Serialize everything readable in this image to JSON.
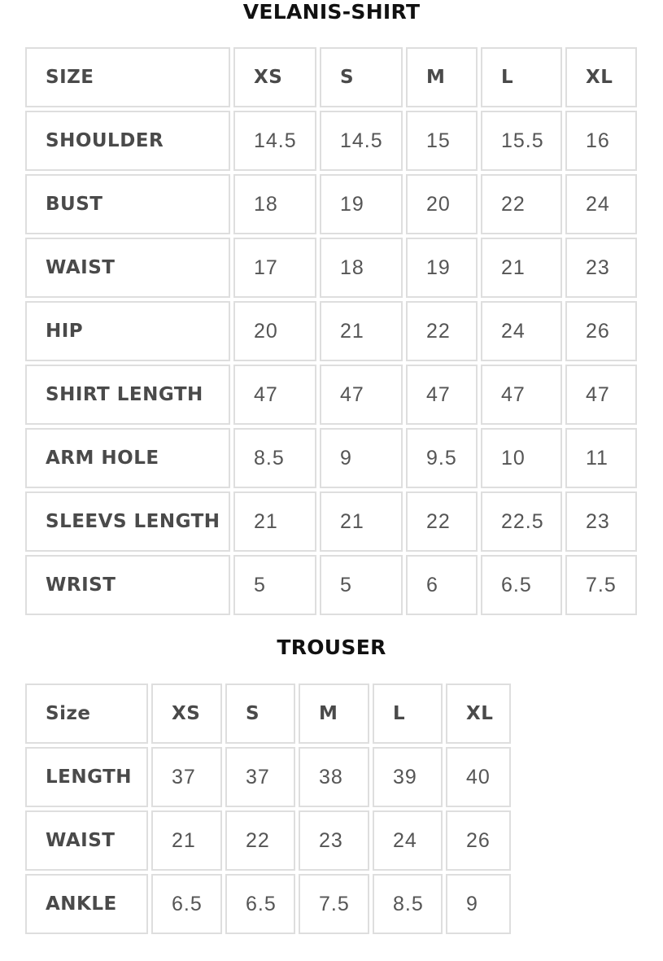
{
  "shirt": {
    "title": "VELANIS-SHIRT",
    "header": [
      "SIZE",
      "XS",
      "S",
      "M",
      "L",
      "XL"
    ],
    "rows": [
      [
        "SHOULDER",
        "14.5",
        "14.5",
        "15",
        "15.5",
        "16"
      ],
      [
        "BUST",
        "18",
        "19",
        "20",
        "22",
        "24"
      ],
      [
        "WAIST",
        "17",
        "18",
        "19",
        "21",
        "23"
      ],
      [
        "HIP",
        "20",
        "21",
        "22",
        "24",
        "26"
      ],
      [
        "SHIRT LENGTH",
        "47",
        "47",
        "47",
        "47",
        "47"
      ],
      [
        "ARM HOLE",
        "8.5",
        "9",
        "9.5",
        "10",
        "11"
      ],
      [
        "SLEEVS LENGTH",
        "21",
        "21",
        "22",
        "22.5",
        "23"
      ],
      [
        "WRIST",
        "5",
        "5",
        "6",
        "6.5",
        "7.5"
      ]
    ]
  },
  "trouser": {
    "title": "TROUSER",
    "header": [
      "Size",
      "XS",
      "S",
      "M",
      "L",
      "XL"
    ],
    "rows": [
      [
        "LENGTH",
        "37",
        "37",
        "38",
        "39",
        "40"
      ],
      [
        "WAIST",
        "21",
        "22",
        "23",
        "24",
        "26"
      ],
      [
        "ANKLE",
        "6.5",
        "6.5",
        "7.5",
        "8.5",
        "9"
      ]
    ]
  }
}
